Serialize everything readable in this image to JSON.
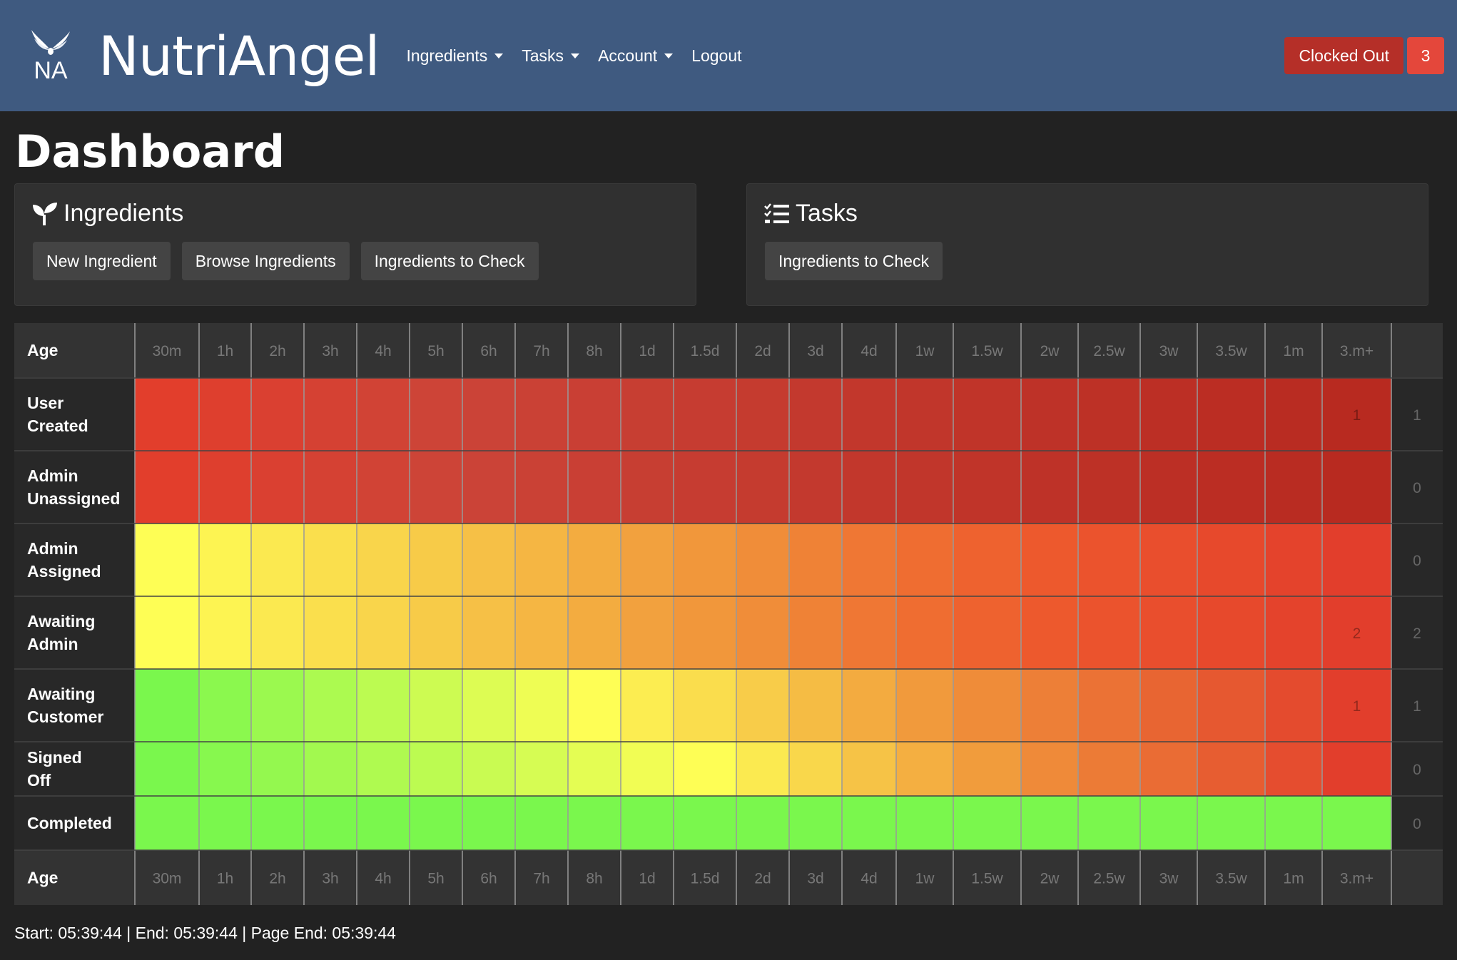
{
  "navbar": {
    "logo_text": "NA",
    "brand": "NutriAngel",
    "menu": [
      {
        "label": "Ingredients",
        "dropdown": true
      },
      {
        "label": "Tasks",
        "dropdown": true
      },
      {
        "label": "Account",
        "dropdown": true
      },
      {
        "label": "Logout",
        "dropdown": false
      }
    ],
    "clock_status": "Clocked Out",
    "clock_count": "3"
  },
  "page": {
    "title": "Dashboard"
  },
  "cards": {
    "ingredients": {
      "title": "Ingredients",
      "icon": "seedling-icon",
      "buttons": [
        "New Ingredient",
        "Browse Ingredients",
        "Ingredients to Check"
      ]
    },
    "tasks": {
      "title": "Tasks",
      "icon": "tasks-list-icon",
      "buttons": [
        "Ingredients to Check"
      ]
    }
  },
  "chart_data": {
    "type": "heatmap",
    "row_header_label": "Age",
    "columns": [
      "30m",
      "1h",
      "2h",
      "3h",
      "4h",
      "5h",
      "6h",
      "7h",
      "8h",
      "1d",
      "1.5d",
      "2d",
      "3d",
      "4d",
      "1w",
      "1.5w",
      "2w",
      "2.5w",
      "3w",
      "3.5w",
      "1m",
      "3.m+"
    ],
    "rows": [
      {
        "label": "User Created",
        "counts": {
          "3.m+": 1
        },
        "total": 1
      },
      {
        "label": "Admin Unassigned",
        "counts": {},
        "total": 0
      },
      {
        "label": "Admin Assigned",
        "counts": {},
        "total": 0
      },
      {
        "label": "Awaiting Admin",
        "counts": {
          "3.m+": 2
        },
        "total": 2
      },
      {
        "label": "Awaiting Customer",
        "counts": {
          "3.m+": 1
        },
        "total": 1
      },
      {
        "label": "Signed Off",
        "counts": {},
        "total": 0
      },
      {
        "label": "Completed",
        "counts": {},
        "total": 0
      }
    ],
    "colors": {
      "background": "#222222",
      "header_bg": "#333333",
      "row_label_bg": "#282828",
      "grid": "#999999",
      "red": "#e23e2c",
      "dark_red": "#b82a20",
      "yellow": "#fefe55",
      "green": "#7af74d"
    }
  },
  "footer": {
    "timing": "Start: 05:39:44 | End: 05:39:44 | Page End: 05:39:44"
  }
}
